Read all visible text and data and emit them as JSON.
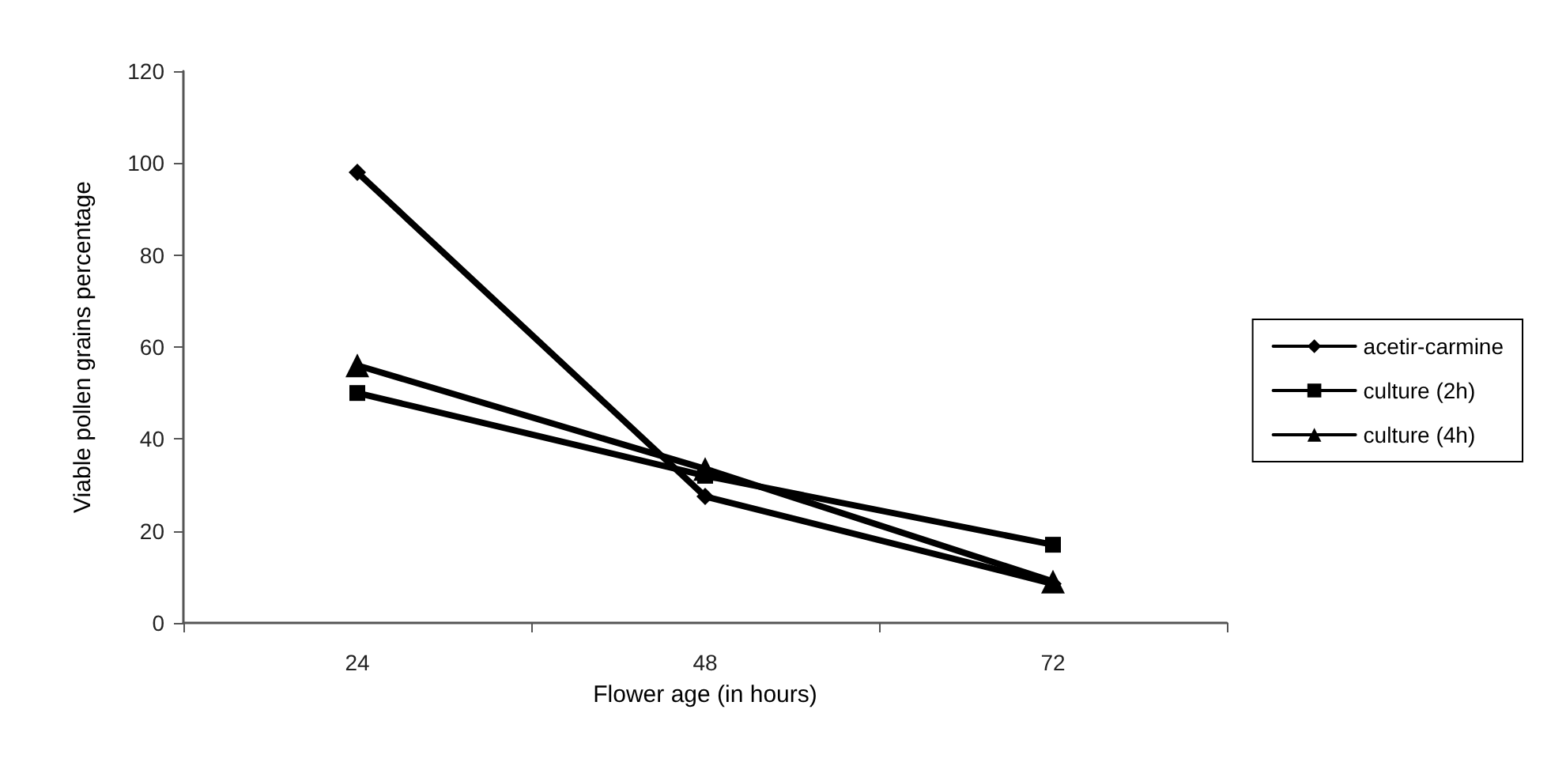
{
  "chart_data": {
    "type": "line",
    "xlabel": "Flower age (in hours)",
    "ylabel": "Viable pollen grains percentage",
    "categories": [
      "24",
      "48",
      "72"
    ],
    "ylim": [
      0,
      120
    ],
    "yticks": [
      0,
      20,
      40,
      60,
      80,
      100,
      120
    ],
    "grid": false,
    "legend": "right",
    "line_style": "solid",
    "series": [
      {
        "name": "acetir-carmine",
        "color": "#000000",
        "marker": "diamond",
        "values": [
          98,
          27.5,
          8.5
        ]
      },
      {
        "name": "culture (2h)",
        "color": "#000000",
        "marker": "square",
        "values": [
          50,
          32,
          17
        ]
      },
      {
        "name": "culture (4h)",
        "color": "#000000",
        "marker": "triangle",
        "values": [
          56,
          33.5,
          9
        ]
      }
    ]
  }
}
